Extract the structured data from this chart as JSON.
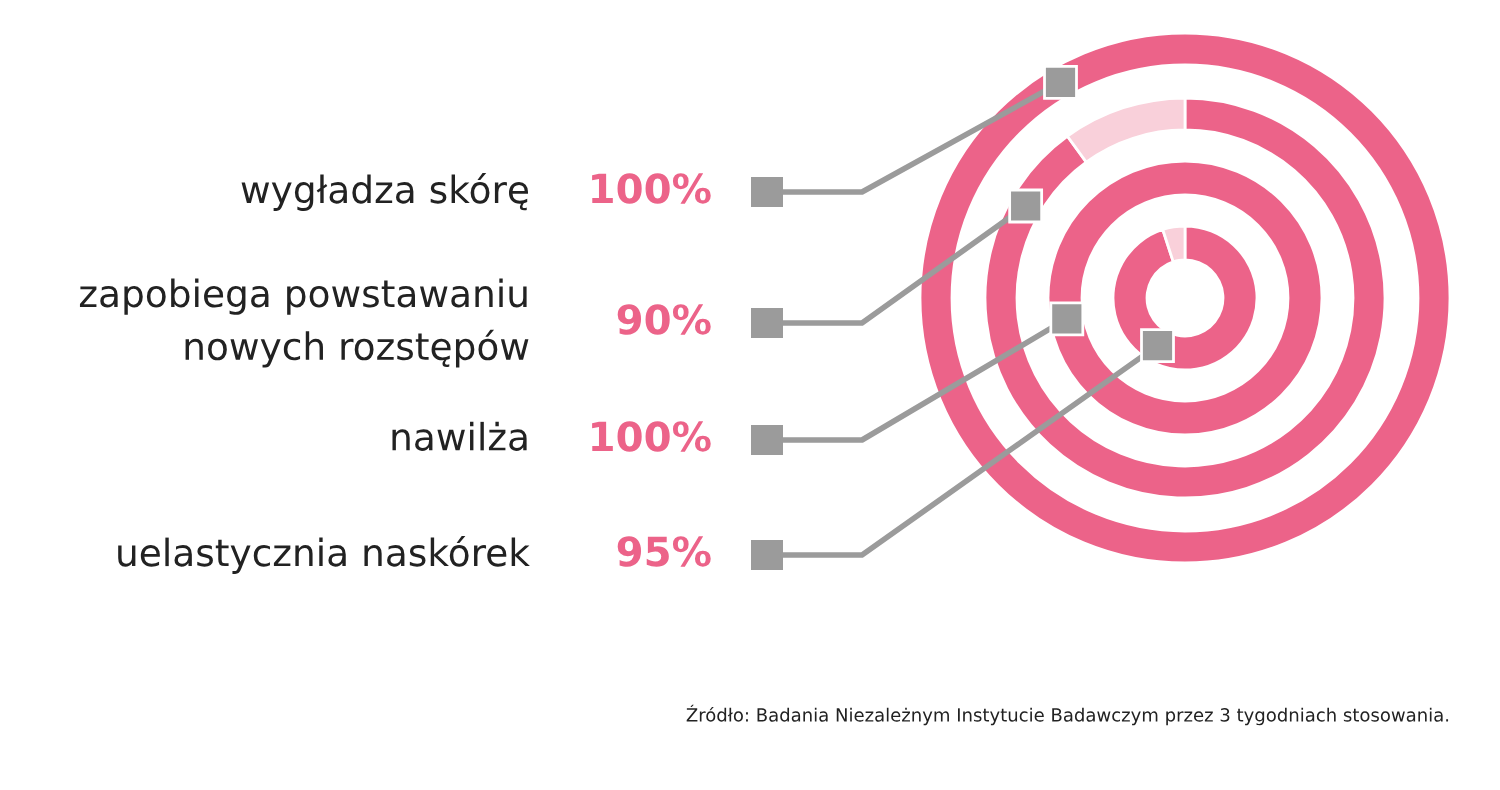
{
  "chart_data": {
    "type": "other",
    "categories": [
      "wygładza skórę",
      "zapobiega powstawaniu\nnowych rozstępów",
      "nawilża",
      "uelastycznia naskórek"
    ],
    "values": [
      100,
      90,
      100,
      95
    ],
    "value_labels": [
      "100%",
      "90%",
      "100%",
      "95%"
    ],
    "color": "#ec6389",
    "annotations": [
      "Źródło: Badania Niezależnym Instytucie Badawczym przez 3 tygodniach stosowania."
    ]
  }
}
